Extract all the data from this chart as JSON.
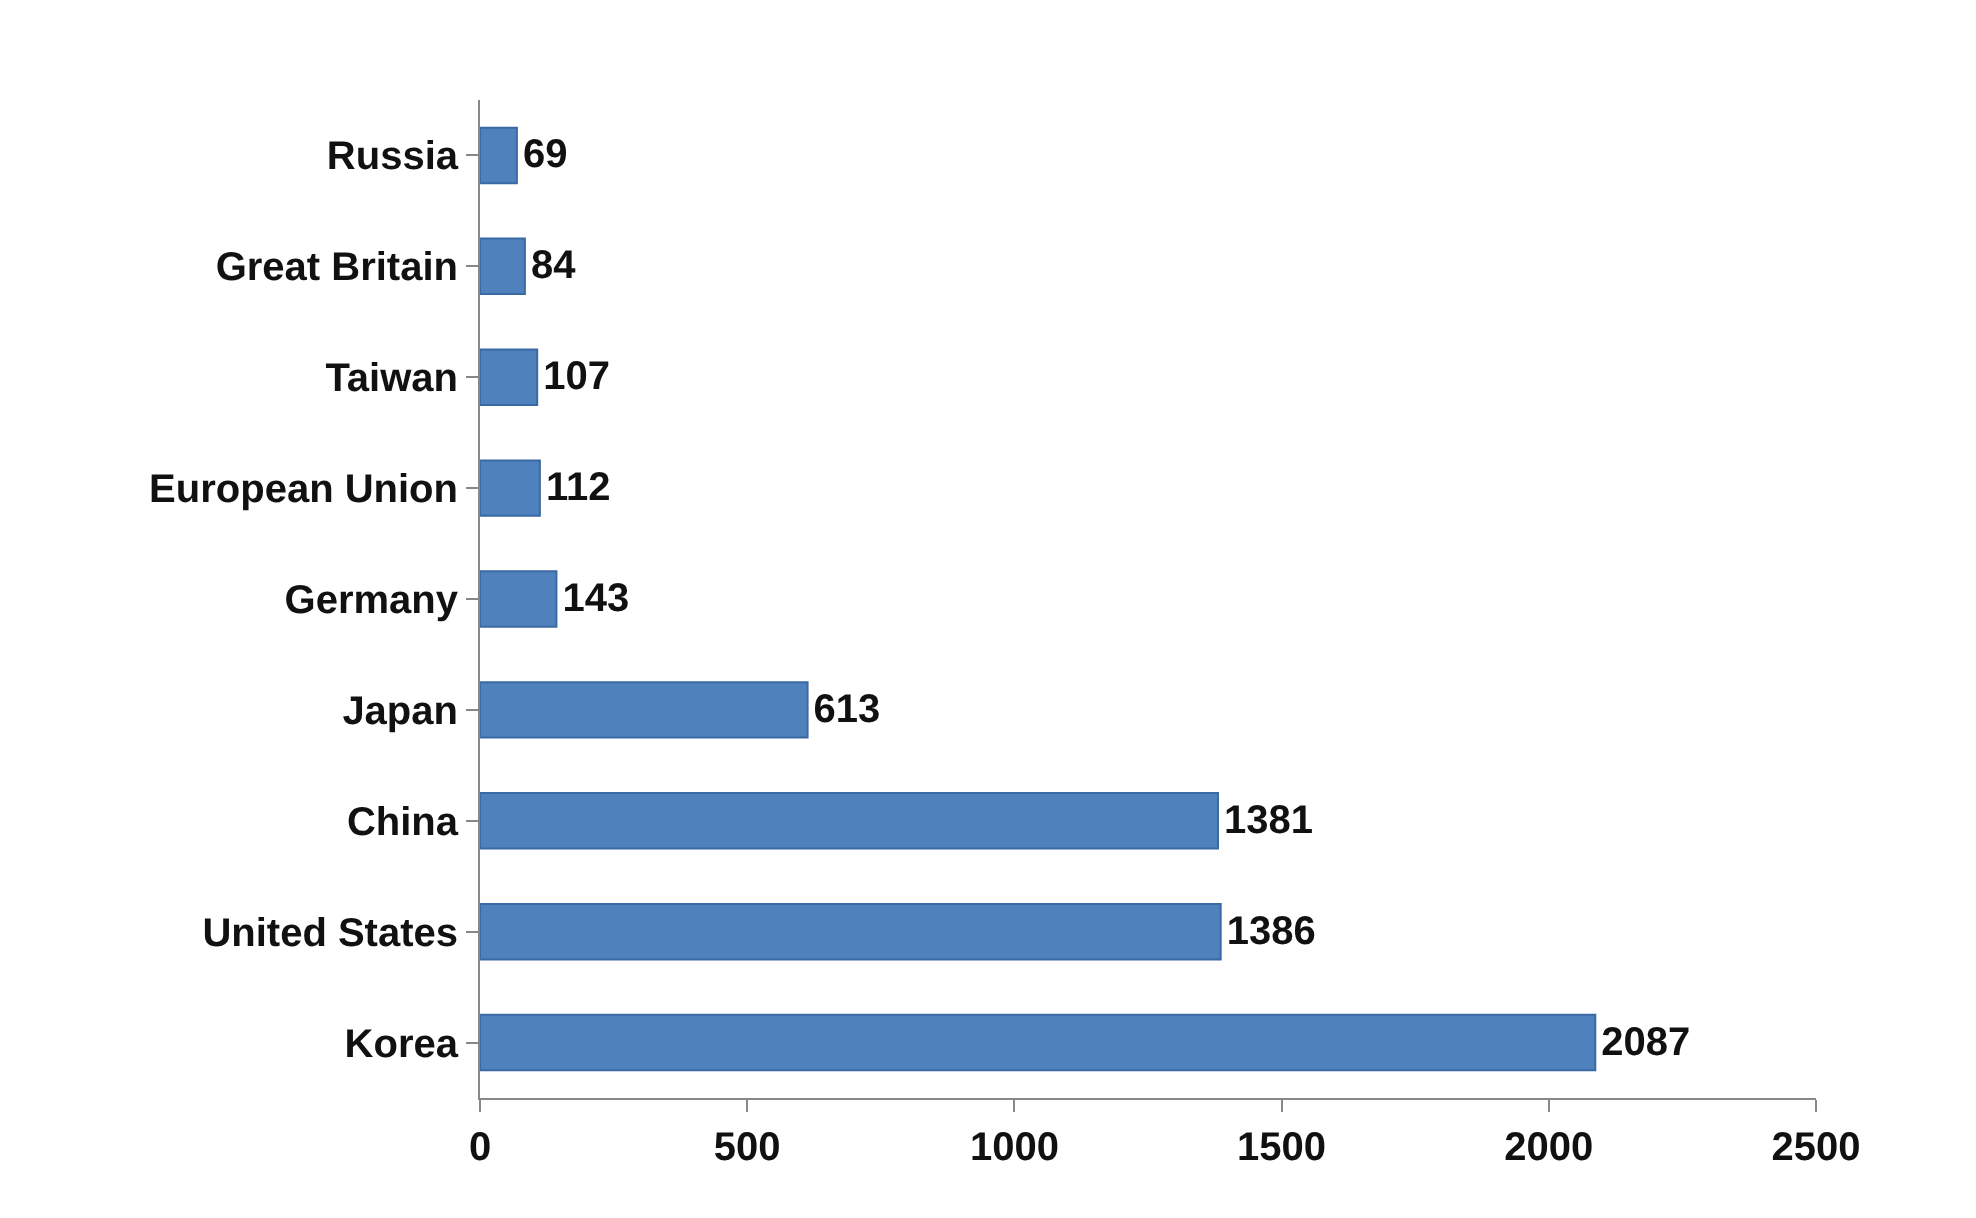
{
  "chart_data": {
    "type": "bar",
    "orientation": "horizontal",
    "categories": [
      "Russia",
      "Great Britain",
      "Taiwan",
      "European Union",
      "Germany",
      "Japan",
      "China",
      "United States",
      "Korea"
    ],
    "values": [
      69,
      84,
      107,
      112,
      143,
      613,
      1381,
      1386,
      2087
    ],
    "color": "#4f81bd",
    "xlim": [
      0,
      2500
    ],
    "xticks": [
      0,
      500,
      1000,
      1500,
      2000,
      2500
    ],
    "data_labels": true
  }
}
